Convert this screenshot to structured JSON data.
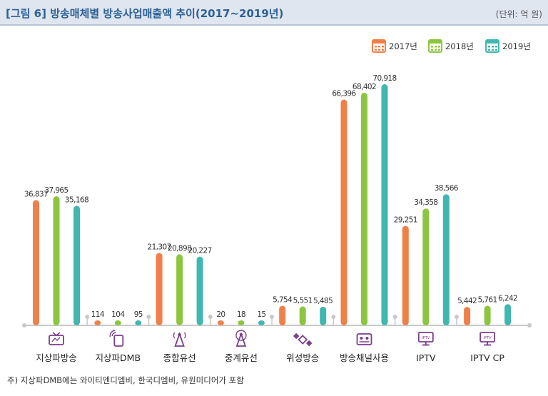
{
  "header": {
    "title": "[그림 6]  방송매체별 방송사업매출액 추이(2017~2019년)",
    "unit": "(단위: 억 원)"
  },
  "note": "주) 지상파DMB에는 와이티엔디엠비, 한국디엠비, 유원미디어가 포함",
  "colors": {
    "2017년": "#f0804a",
    "2018년": "#8cc63f",
    "2019년": "#40b7b0"
  },
  "chart_data": {
    "type": "bar",
    "categories": [
      "지상파방송",
      "지상파DMB",
      "종합유선",
      "중계유선",
      "위성방송",
      "방송채널사용",
      "IPTV",
      "IPTV CP"
    ],
    "series": [
      {
        "name": "2017년",
        "values": [
          36837,
          114,
          21307,
          20,
          5754,
          66396,
          29251,
          5442
        ],
        "labels": [
          "36,837",
          "114",
          "21,307",
          "20",
          "5,754",
          "66,396",
          "29,251",
          "5,442"
        ]
      },
      {
        "name": "2018년",
        "values": [
          37965,
          104,
          20898,
          18,
          5551,
          68402,
          34358,
          5761
        ],
        "labels": [
          "37,965",
          "104",
          "20,898",
          "18",
          "5,551",
          "68,402",
          "34,358",
          "5,761"
        ]
      },
      {
        "name": "2019년",
        "values": [
          35168,
          95,
          20227,
          15,
          5485,
          70918,
          38566,
          6242
        ],
        "labels": [
          "35,168",
          "95",
          "20,227",
          "15",
          "5,485",
          "70,918",
          "38,566",
          "6,242"
        ]
      }
    ],
    "icons": [
      "tv-antenna-icon",
      "mobile-broadcast-icon",
      "cable-tower-icon",
      "relay-tower-icon",
      "satellite-icon",
      "channel-screen-icon",
      "iptv-monitor-icon",
      "iptv-cp-monitor-icon"
    ],
    "legend": "top-right"
  }
}
